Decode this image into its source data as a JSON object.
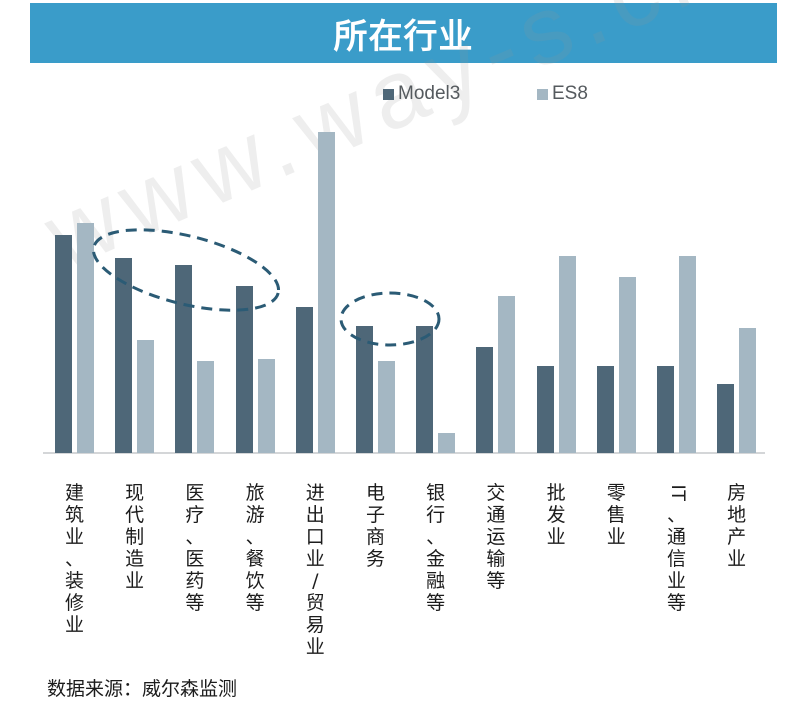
{
  "header": {
    "title": "所在行业",
    "banner_color": "#3a9cc9"
  },
  "legend": [
    {
      "label": "Model3",
      "color": "#4e6778"
    },
    {
      "label": "ES8",
      "color": "#a4b7c3"
    }
  ],
  "footer": {
    "source": "数据来源：威尔森监测"
  },
  "watermark": {
    "text": "www.way-s.cn"
  },
  "chart_data": {
    "type": "bar",
    "title": "所在行业",
    "xlabel": "",
    "ylabel": "",
    "y_axis_visible": false,
    "grid": false,
    "legend_position": "top",
    "note": "No numeric axis shown; values are relative bar heights normalized so the tallest bar = 100",
    "ylim": [
      0,
      100
    ],
    "categories": [
      "建筑业、装修业",
      "现代制造业",
      "医疗、医药等",
      "旅游、餐饮等",
      "进出口业/贸易业",
      "电子商务",
      "银行、金融等",
      "交通运输等",
      "批发业",
      "零售业",
      "IT、通信业等",
      "房地产业"
    ],
    "series": [
      {
        "name": "Model3",
        "color": "#4e6778",
        "values": [
          67.9,
          60.7,
          58.6,
          52.0,
          45.5,
          39.6,
          39.6,
          33.0,
          27.1,
          27.1,
          27.1,
          21.5
        ]
      },
      {
        "name": "ES8",
        "color": "#a4b7c3",
        "values": [
          71.7,
          35.2,
          28.7,
          29.3,
          100.0,
          28.7,
          6.2,
          48.9,
          61.4,
          54.8,
          61.4,
          38.9
        ]
      }
    ],
    "annotations": [
      {
        "type": "dashed-ellipse",
        "covers": [
          "现代制造业",
          "医疗、医药等",
          "旅游、餐饮等"
        ],
        "series": "Model3"
      },
      {
        "type": "dashed-ellipse",
        "covers": [
          "电子商务",
          "银行、金融等"
        ],
        "series": "Model3"
      }
    ]
  }
}
